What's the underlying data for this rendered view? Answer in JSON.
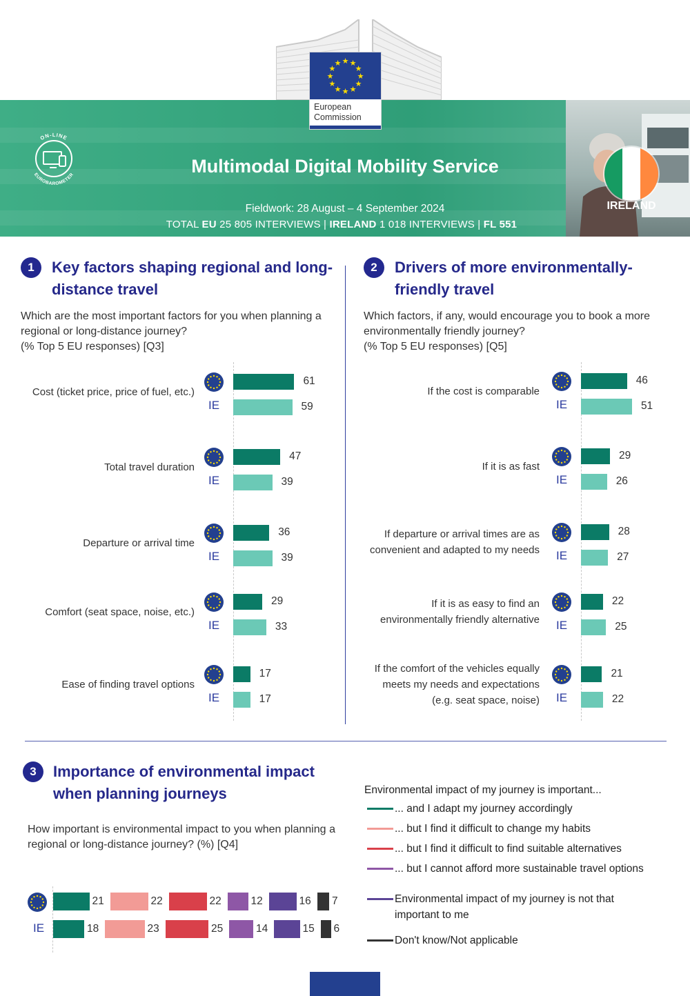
{
  "header": {
    "org_line1": "European",
    "org_line2": "Commission",
    "title": "Multimodal Digital Mobility Service",
    "fieldwork": "Fieldwork: 28 August – 4 September 2024",
    "totals": {
      "prefix": "TOTAL ",
      "eu_label": "EU",
      "eu_value": " 25 805 INTERVIEWS | ",
      "country_label": "IRELAND",
      "country_value": " 1 018 INTERVIEWS | ",
      "fl": "FL 551"
    },
    "badge_top": "ON-LINE",
    "badge_bottom": "EUROBAROMETER",
    "country": "IRELAND"
  },
  "icons": [
    "eurobarometer-online-badge",
    "eu-flag-icon",
    "ireland-flag-icon"
  ],
  "colors": {
    "eu_bar": "#0b7b66",
    "ie_bar": "#6bc9b6",
    "heading": "#25288a",
    "banner": "#3fae86"
  },
  "labels": {
    "eu": "EU",
    "ie": "IE"
  },
  "chart_data": [
    {
      "type": "bar",
      "number": "1",
      "title": "Key factors shaping regional and long-distance travel",
      "question": "Which are the most important factors for you when planning a regional or long-distance journey?",
      "question_note": "(% Top 5 EU responses) [Q3]",
      "categories": [
        "Cost (ticket price, price of fuel, etc.)",
        "Total travel duration",
        "Departure or arrival time",
        "Comfort (seat space, noise, etc.)",
        "Ease of finding travel options"
      ],
      "series": [
        {
          "name": "EU",
          "values": [
            61,
            47,
            36,
            29,
            17
          ]
        },
        {
          "name": "IE",
          "values": [
            59,
            39,
            39,
            33,
            17
          ]
        }
      ],
      "xlim": [
        0,
        100
      ]
    },
    {
      "type": "bar",
      "number": "2",
      "title": "Drivers of more environmentally-friendly travel",
      "question": "Which factors, if any, would encourage you to book a more environmentally friendly journey?",
      "question_note": "(% Top 5 EU responses) [Q5]",
      "categories": [
        "If the cost is comparable",
        "If it is as fast",
        "If departure or arrival times are as convenient and adapted to my needs",
        "If it is as easy to find an environmentally friendly alternative",
        "If the comfort of the vehicles equally meets my needs and expectations (e.g. seat space, noise)"
      ],
      "series": [
        {
          "name": "EU",
          "values": [
            46,
            29,
            28,
            22,
            21
          ]
        },
        {
          "name": "IE",
          "values": [
            51,
            26,
            27,
            25,
            22
          ]
        }
      ],
      "xlim": [
        0,
        100
      ]
    },
    {
      "type": "bar",
      "stacked": true,
      "number": "3",
      "title": "Importance of environmental impact when planning journeys",
      "question": "How important is environmental impact to you when planning a regional or long-distance journey? (%) [Q4]",
      "categories": [
        "EU",
        "IE"
      ],
      "legend_title": "Environmental impact of my journey is important...",
      "series": [
        {
          "name": "... and I adapt my journey accordingly",
          "color": "#0b7b66",
          "values": [
            21,
            18
          ]
        },
        {
          "name": "... but I find it difficult to change my habits",
          "color": "#f29b96",
          "values": [
            22,
            23
          ]
        },
        {
          "name": "... but I find it difficult to find suitable alternatives",
          "color": "#d9404a",
          "values": [
            22,
            25
          ]
        },
        {
          "name": "... but I cannot afford more sustainable travel options",
          "color": "#8e57a6",
          "values": [
            12,
            14
          ]
        },
        {
          "name": "Environmental impact of my journey is not that important to me",
          "color": "#5b4496",
          "values": [
            16,
            15
          ]
        },
        {
          "name": "Don't know/Not applicable",
          "color": "#333333",
          "values": [
            7,
            6
          ]
        }
      ],
      "xlim": [
        0,
        100
      ]
    }
  ]
}
